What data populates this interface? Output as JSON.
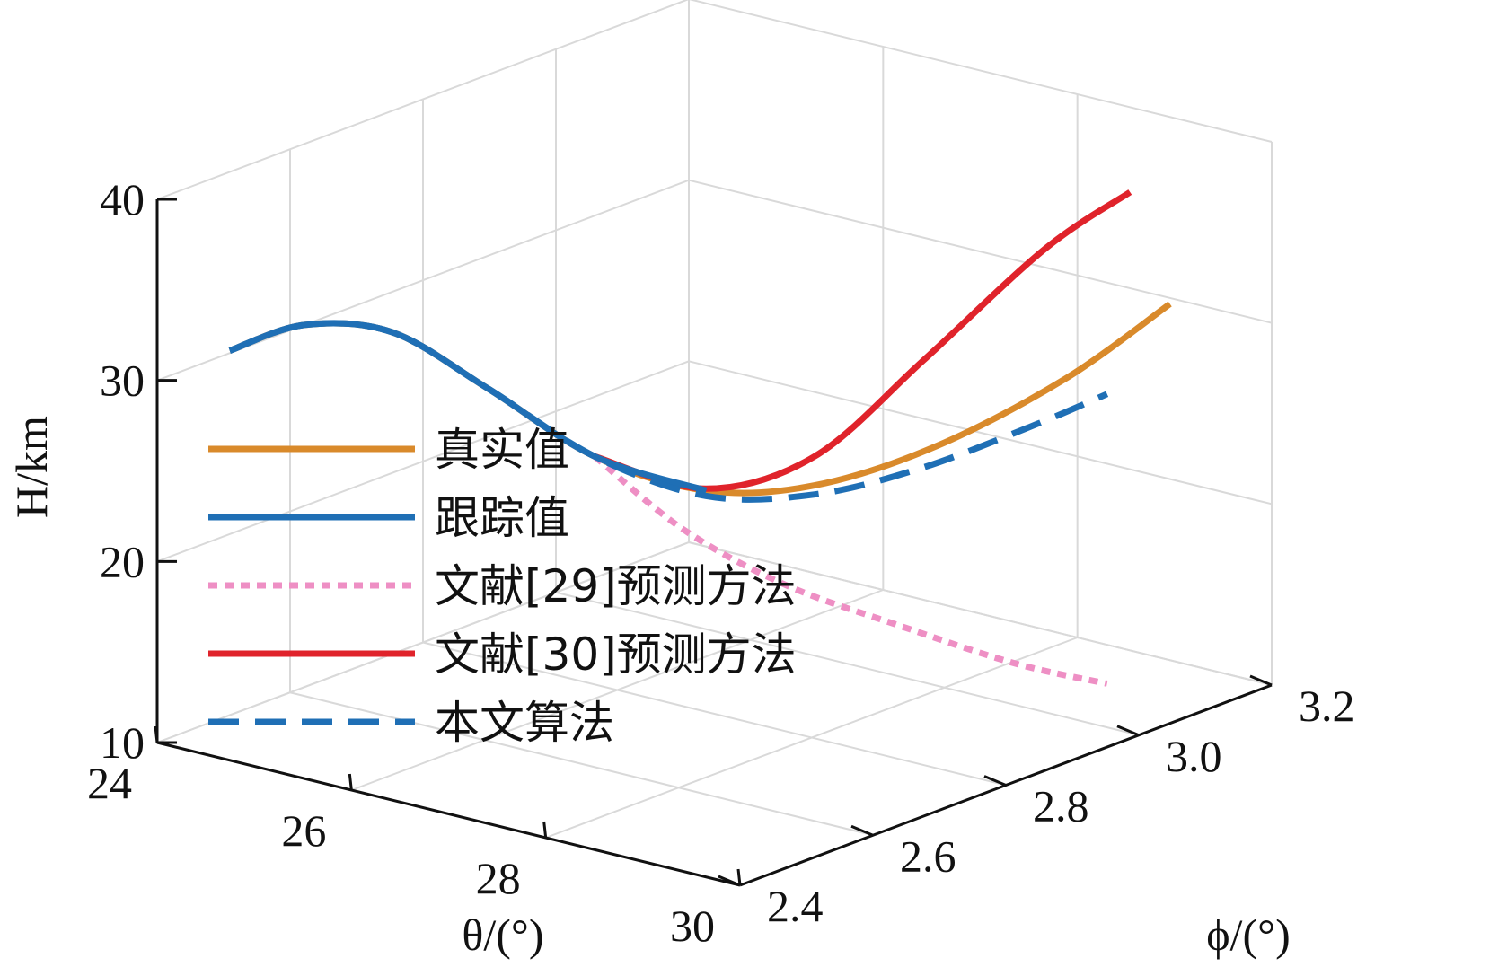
{
  "chart_data": {
    "type": "line",
    "projection": "3d",
    "title": "",
    "xlabel": "θ/(°)",
    "ylabel": "ϕ/(°)",
    "zlabel": "H/km",
    "xlim": [
      24,
      30
    ],
    "ylim": [
      2.4,
      3.2
    ],
    "zlim": [
      10,
      40
    ],
    "xticks": [
      "24",
      "26",
      "28",
      "30"
    ],
    "yticks": [
      "2.4",
      "2.6",
      "2.8",
      "3.0",
      "3.2"
    ],
    "zticks": [
      "10",
      "20",
      "30",
      "40"
    ],
    "grid": true,
    "legend_position": "left",
    "series": [
      {
        "name": "真实值",
        "color": "#d98a2b",
        "style": "solid",
        "points": [
          [
            24.2,
            2.48,
            30.8
          ],
          [
            24.9,
            2.49,
            33.0
          ],
          [
            25.6,
            2.52,
            33.1
          ],
          [
            26.3,
            2.56,
            30.4
          ],
          [
            27.0,
            2.62,
            26.7
          ],
          [
            27.6,
            2.7,
            24.5
          ],
          [
            28.1,
            2.79,
            24.2
          ],
          [
            28.6,
            2.9,
            25.5
          ],
          [
            29.1,
            3.02,
            28.2
          ],
          [
            29.5,
            3.12,
            31.5
          ]
        ]
      },
      {
        "name": "跟踪值",
        "color": "#1f6fb5",
        "style": "solid",
        "points": [
          [
            24.2,
            2.48,
            30.8
          ],
          [
            24.9,
            2.49,
            33.0
          ],
          [
            25.6,
            2.52,
            33.1
          ],
          [
            26.3,
            2.56,
            30.4
          ],
          [
            27.0,
            2.62,
            26.7
          ],
          [
            27.6,
            2.7,
            24.5
          ]
        ]
      },
      {
        "name": "文献[29]预测方法",
        "color": "#ee8fc4",
        "style": "dotted",
        "points": [
          [
            27.0,
            2.62,
            26.7
          ],
          [
            27.5,
            2.68,
            22.5
          ],
          [
            28.0,
            2.76,
            19.0
          ],
          [
            28.5,
            2.86,
            16.0
          ],
          [
            29.0,
            2.96,
            13.2
          ],
          [
            29.4,
            3.04,
            11.5
          ]
        ]
      },
      {
        "name": "文献[30]预测方法",
        "color": "#e0232b",
        "style": "solid",
        "points": [
          [
            27.0,
            2.62,
            26.7
          ],
          [
            27.6,
            2.7,
            24.6
          ],
          [
            28.1,
            2.79,
            25.8
          ],
          [
            28.6,
            2.88,
            30.5
          ],
          [
            29.1,
            2.99,
            35.8
          ],
          [
            29.5,
            3.06,
            38.5
          ]
        ]
      },
      {
        "name": "本文算法",
        "color": "#1f6fb5",
        "style": "dashed",
        "points": [
          [
            24.2,
            2.48,
            30.8
          ],
          [
            24.9,
            2.49,
            33.0
          ],
          [
            25.6,
            2.52,
            33.1
          ],
          [
            26.3,
            2.56,
            30.4
          ],
          [
            27.0,
            2.62,
            26.7
          ],
          [
            27.6,
            2.7,
            24.2
          ],
          [
            28.1,
            2.79,
            23.7
          ],
          [
            28.6,
            2.88,
            24.6
          ],
          [
            29.1,
            2.98,
            26.3
          ],
          [
            29.4,
            3.04,
            27.5
          ]
        ]
      }
    ]
  }
}
